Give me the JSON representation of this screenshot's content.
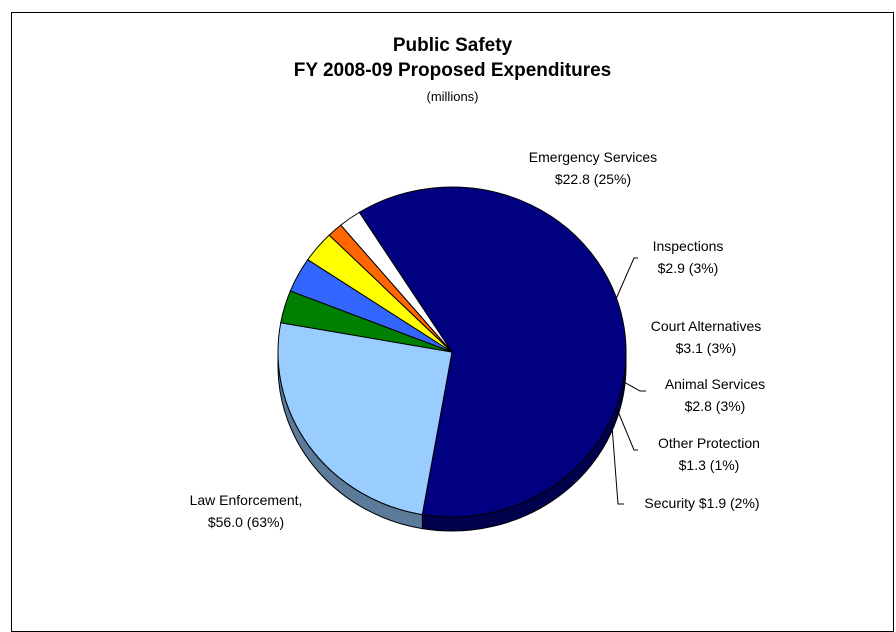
{
  "chart_data": {
    "type": "pie",
    "title": "Public Safety",
    "subtitle_line": "FY 2008-09 Proposed Expenditures",
    "units": "(millions)",
    "slices": [
      {
        "label_line1": "Law Enforcement,",
        "label_line2": "$56.0 (63%)",
        "value": 56.0,
        "percent": 63,
        "color": "#000080"
      },
      {
        "label_line1": "Emergency Services",
        "label_line2": "$22.8 (25%)",
        "value": 22.8,
        "percent": 25,
        "color": "#99CCFF"
      },
      {
        "label_line1": "Inspections",
        "label_line2": "$2.9 (3%)",
        "value": 2.9,
        "percent": 3,
        "color": "#008000"
      },
      {
        "label_line1": "Court Alternatives",
        "label_line2": "$3.1 (3%)",
        "value": 3.1,
        "percent": 3,
        "color": "#3366FF"
      },
      {
        "label_line1": "Animal Services",
        "label_line2": "$2.8 (3%)",
        "value": 2.8,
        "percent": 3,
        "color": "#FFFF00"
      },
      {
        "label_line1": "Other Protection",
        "label_line2": "$1.3 (1%)",
        "value": 1.3,
        "percent": 1,
        "color": "#FF6600"
      },
      {
        "label_line1": "Security $1.9 (2%)",
        "label_line2": "",
        "value": 1.9,
        "percent": 2,
        "color": "#FFFFFF"
      }
    ]
  }
}
